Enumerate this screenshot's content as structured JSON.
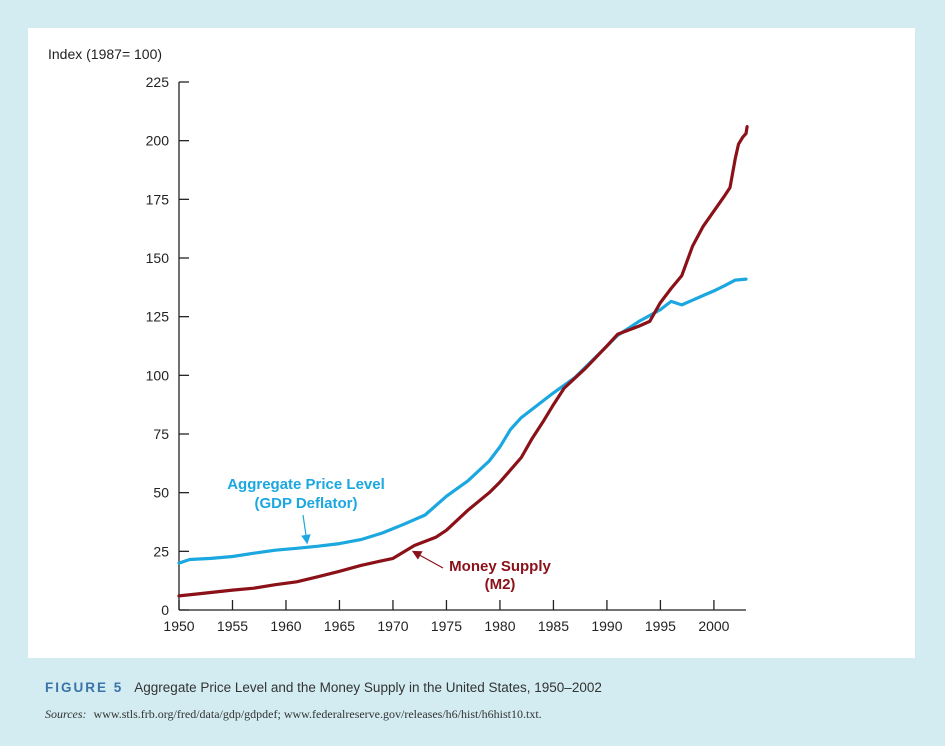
{
  "figure": {
    "label": "FIGURE 5",
    "title": "Aggregate Price Level and the Money Supply in the United States, 1950–2002",
    "sources_label": "Sources:",
    "sources_text": "www.stls.frb.org/fred/data/gdp/gdpdef; www.federalreserve.gov/releases/h6/hist/h6hist10.txt."
  },
  "chart_data": {
    "type": "line",
    "ylabel": "Index (1987= 100)",
    "xlabel": "",
    "xlim": [
      1950,
      2003
    ],
    "ylim": [
      0,
      225
    ],
    "x_ticks": [
      1950,
      1955,
      1960,
      1965,
      1970,
      1975,
      1980,
      1985,
      1990,
      1995,
      2000
    ],
    "y_ticks": [
      0,
      25,
      50,
      75,
      100,
      125,
      150,
      175,
      200,
      225
    ],
    "grid": false,
    "legend": "none",
    "series": [
      {
        "name": "Aggregate Price Level (GDP Deflator)",
        "label_lines": [
          "Aggregate Price Level",
          "(GDP Deflator)"
        ],
        "color": "#1ba7df",
        "points": [
          [
            1950,
            20
          ],
          [
            1951,
            21.5
          ],
          [
            1953,
            22
          ],
          [
            1955,
            22.8
          ],
          [
            1957,
            24.2
          ],
          [
            1959,
            25.5
          ],
          [
            1961,
            26.3
          ],
          [
            1963,
            27.2
          ],
          [
            1965,
            28.3
          ],
          [
            1967,
            30
          ],
          [
            1969,
            32.8
          ],
          [
            1971,
            36.5
          ],
          [
            1973,
            40.5
          ],
          [
            1975,
            48.5
          ],
          [
            1977,
            55
          ],
          [
            1979,
            63.5
          ],
          [
            1980,
            69.5
          ],
          [
            1981,
            77
          ],
          [
            1982,
            82
          ],
          [
            1983,
            85.5
          ],
          [
            1985,
            92.5
          ],
          [
            1987,
            99
          ],
          [
            1989,
            108
          ],
          [
            1991,
            117
          ],
          [
            1993,
            123
          ],
          [
            1995,
            128
          ],
          [
            1996,
            131.5
          ],
          [
            1997,
            130
          ],
          [
            1998,
            132
          ],
          [
            1999,
            134
          ],
          [
            2000,
            136
          ],
          [
            2001,
            138.2
          ],
          [
            2002,
            140.6
          ],
          [
            2003,
            141
          ]
        ]
      },
      {
        "name": "Money Supply (M2)",
        "label_lines": [
          "Money Supply",
          "(M2)"
        ],
        "color": "#8b1118",
        "points": [
          [
            1950,
            6
          ],
          [
            1952,
            7
          ],
          [
            1955,
            8.5
          ],
          [
            1957,
            9.3
          ],
          [
            1959,
            10.8
          ],
          [
            1961,
            12
          ],
          [
            1963,
            14.2
          ],
          [
            1965,
            16.5
          ],
          [
            1967,
            19
          ],
          [
            1969,
            21
          ],
          [
            1970,
            22
          ],
          [
            1972,
            27.5
          ],
          [
            1974,
            31
          ],
          [
            1975,
            34
          ],
          [
            1977,
            42.5
          ],
          [
            1979,
            50
          ],
          [
            1980,
            54.5
          ],
          [
            1982,
            65
          ],
          [
            1983,
            73
          ],
          [
            1984,
            80
          ],
          [
            1985,
            87.5
          ],
          [
            1986,
            94.5
          ],
          [
            1988,
            103
          ],
          [
            1990,
            112.5
          ],
          [
            1991,
            117.5
          ],
          [
            1993,
            121
          ],
          [
            1994,
            123
          ],
          [
            1995,
            131
          ],
          [
            1996,
            137
          ],
          [
            1997,
            142.5
          ],
          [
            1998,
            155
          ],
          [
            1999,
            163.5
          ],
          [
            2000,
            170
          ],
          [
            2001,
            176.5
          ],
          [
            2001.5,
            180
          ],
          [
            2002,
            192.5
          ],
          [
            2002.3,
            198.5
          ],
          [
            2002.7,
            201.5
          ],
          [
            2003,
            203
          ],
          [
            2003.1,
            206
          ]
        ]
      }
    ]
  }
}
